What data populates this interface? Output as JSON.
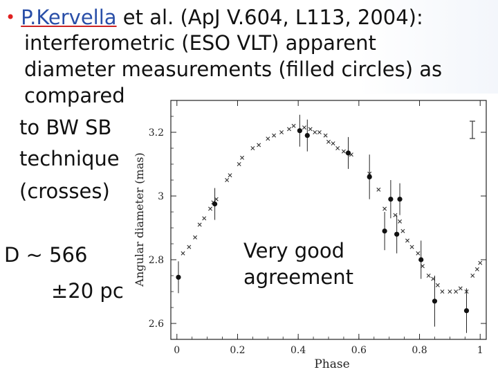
{
  "slide": {
    "bullet": "•",
    "author": "P.Kervella",
    "line1_rest": "et al. (ApJ V.604, L113, 2004):",
    "line2": "interferometric (ESO VLT) apparent",
    "line3": "diameter measurements (filled circles) as",
    "line4": "compared",
    "line5": "to BW SB",
    "line6": "technique",
    "line7": "(crosses)",
    "distance_line1": "D ~ 566",
    "distance_line2": "±20 pc",
    "note_line1": "Very good",
    "note_line2": "agreement"
  },
  "chart_data": {
    "type": "scatter",
    "title": "",
    "xlabel": "Phase",
    "ylabel": "Angular diameter (mas)",
    "xlim": [
      -0.02,
      1.02
    ],
    "ylim": [
      2.55,
      3.3
    ],
    "xticks": [
      0,
      0.2,
      0.4,
      0.6,
      0.8,
      1
    ],
    "xtick_labels": [
      "0",
      "0.2",
      "0.4",
      "0.6",
      "0.8",
      "1"
    ],
    "yticks": [
      2.6,
      2.8,
      3,
      3.2
    ],
    "ytick_labels": [
      "2.6",
      "2.8",
      "3",
      "3.2"
    ],
    "error_bar_legend": true,
    "series": [
      {
        "marker": "filled-circle",
        "points": [
          {
            "x": 0.005,
            "y": 2.745,
            "err": 0.05
          },
          {
            "x": 0.125,
            "y": 2.975,
            "err": 0.05
          },
          {
            "x": 0.405,
            "y": 3.205,
            "err": 0.05
          },
          {
            "x": 0.43,
            "y": 3.19,
            "err": 0.05
          },
          {
            "x": 0.565,
            "y": 3.135,
            "err": 0.05
          },
          {
            "x": 0.635,
            "y": 3.06,
            "err": 0.07
          },
          {
            "x": 0.705,
            "y": 2.99,
            "err": 0.06
          },
          {
            "x": 0.735,
            "y": 2.99,
            "err": 0.05
          },
          {
            "x": 0.685,
            "y": 2.89,
            "err": 0.06
          },
          {
            "x": 0.725,
            "y": 2.88,
            "err": 0.06
          },
          {
            "x": 0.805,
            "y": 2.8,
            "err": 0.06
          },
          {
            "x": 0.85,
            "y": 2.67,
            "err": 0.08
          },
          {
            "x": 0.955,
            "y": 2.64,
            "err": 0.07
          }
        ]
      },
      {
        "marker": "cross",
        "points": [
          {
            "x": 0.02,
            "y": 2.82
          },
          {
            "x": 0.04,
            "y": 2.84
          },
          {
            "x": 0.06,
            "y": 2.87
          },
          {
            "x": 0.075,
            "y": 2.91
          },
          {
            "x": 0.09,
            "y": 2.93
          },
          {
            "x": 0.11,
            "y": 2.96
          },
          {
            "x": 0.12,
            "y": 2.98
          },
          {
            "x": 0.13,
            "y": 2.99
          },
          {
            "x": 0.165,
            "y": 3.05
          },
          {
            "x": 0.175,
            "y": 3.065
          },
          {
            "x": 0.205,
            "y": 3.1
          },
          {
            "x": 0.215,
            "y": 3.12
          },
          {
            "x": 0.25,
            "y": 3.15
          },
          {
            "x": 0.27,
            "y": 3.16
          },
          {
            "x": 0.3,
            "y": 3.18
          },
          {
            "x": 0.32,
            "y": 3.19
          },
          {
            "x": 0.345,
            "y": 3.2
          },
          {
            "x": 0.37,
            "y": 3.21
          },
          {
            "x": 0.385,
            "y": 3.22
          },
          {
            "x": 0.42,
            "y": 3.215
          },
          {
            "x": 0.44,
            "y": 3.21
          },
          {
            "x": 0.455,
            "y": 3.2
          },
          {
            "x": 0.47,
            "y": 3.2
          },
          {
            "x": 0.49,
            "y": 3.19
          },
          {
            "x": 0.5,
            "y": 3.17
          },
          {
            "x": 0.515,
            "y": 3.165
          },
          {
            "x": 0.53,
            "y": 3.15
          },
          {
            "x": 0.55,
            "y": 3.14
          },
          {
            "x": 0.575,
            "y": 3.13
          },
          {
            "x": 0.635,
            "y": 3.07
          },
          {
            "x": 0.665,
            "y": 3.02
          },
          {
            "x": 0.685,
            "y": 2.96
          },
          {
            "x": 0.72,
            "y": 2.94
          },
          {
            "x": 0.735,
            "y": 2.92
          },
          {
            "x": 0.745,
            "y": 2.89
          },
          {
            "x": 0.76,
            "y": 2.86
          },
          {
            "x": 0.775,
            "y": 2.84
          },
          {
            "x": 0.795,
            "y": 2.82
          },
          {
            "x": 0.81,
            "y": 2.78
          },
          {
            "x": 0.83,
            "y": 2.75
          },
          {
            "x": 0.845,
            "y": 2.74
          },
          {
            "x": 0.86,
            "y": 2.72
          },
          {
            "x": 0.875,
            "y": 2.7
          },
          {
            "x": 0.9,
            "y": 2.7
          },
          {
            "x": 0.92,
            "y": 2.7
          },
          {
            "x": 0.935,
            "y": 2.71
          },
          {
            "x": 0.955,
            "y": 2.7
          },
          {
            "x": 0.975,
            "y": 2.75
          },
          {
            "x": 0.99,
            "y": 2.77
          },
          {
            "x": 1.0,
            "y": 2.79
          }
        ]
      }
    ]
  }
}
